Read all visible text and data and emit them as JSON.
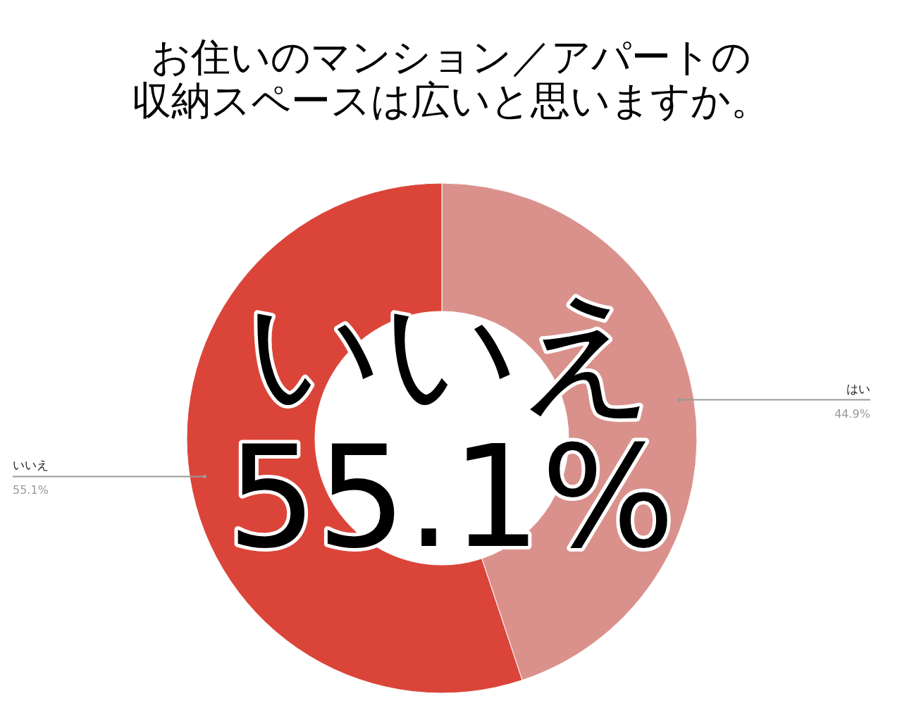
{
  "chart_data": {
    "type": "donut",
    "title": "お住いのマンション／アパートの",
    "subtitle": "収納スペースは広いと思いますか。",
    "categories": [
      "はい",
      "いいえ"
    ],
    "values": [
      44.9,
      55.1
    ],
    "colors": [
      "#da918c",
      "#db4539"
    ],
    "value_labels": [
      "44.9%",
      "55.1%"
    ],
    "annotations": [
      "いいえ",
      "55.1%"
    ]
  }
}
